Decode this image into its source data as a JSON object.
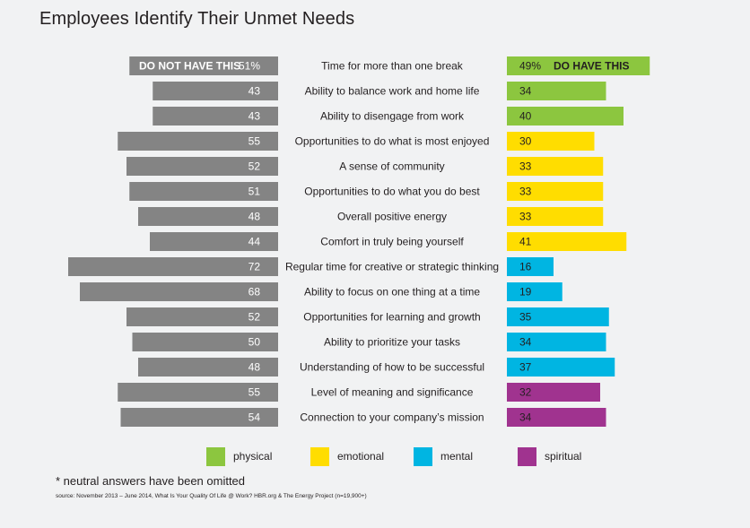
{
  "title": "Employees Identify Their Unmet Needs",
  "footnote": "* neutral answers have been omitted",
  "source": "source: November 2013 – June 2014, What Is Your Quality Of Life @ Work? HBR.org & The Energy Project (n=19,900+)",
  "left_tag": "DO NOT HAVE THIS",
  "right_tag": "DO HAVE THIS",
  "colors": {
    "gray": "#848484",
    "physical": "#8cc63f",
    "emotional": "#ffdd00",
    "mental": "#00b5e2",
    "spiritual": "#a0338f"
  },
  "chart_data": {
    "type": "bar",
    "categories": [
      "Time for more than one break",
      "Ability to balance work and home life",
      "Ability to disengage from work",
      "Opportunities to do what is most enjoyed",
      "A sense of community",
      "Opportunities to do what you do best",
      "Overall positive energy",
      "Comfort in truly being yourself",
      "Regular time for creative or strategic thinking",
      "Ability to focus on one thing at a time",
      "Opportunities for learning and growth",
      "Ability to prioritize your tasks",
      "Understanding of how to be successful",
      "Level of meaning and significance",
      "Connection to your company’s mission"
    ],
    "category_type": [
      "physical",
      "physical",
      "physical",
      "emotional",
      "emotional",
      "emotional",
      "emotional",
      "emotional",
      "mental",
      "mental",
      "mental",
      "mental",
      "mental",
      "spiritual",
      "spiritual"
    ],
    "series": [
      {
        "name": "DO NOT HAVE THIS",
        "values": [
          51,
          43,
          43,
          55,
          52,
          51,
          48,
          44,
          72,
          68,
          52,
          50,
          48,
          55,
          54
        ],
        "labels": [
          "51%",
          "43",
          "43",
          "55",
          "52",
          "51",
          "48",
          "44",
          "72",
          "68",
          "52",
          "50",
          "48",
          "55",
          "54"
        ]
      },
      {
        "name": "DO HAVE THIS",
        "values": [
          49,
          34,
          40,
          30,
          33,
          33,
          33,
          41,
          16,
          19,
          35,
          34,
          37,
          32,
          34
        ],
        "labels": [
          "49%",
          "34",
          "40",
          "30",
          "33",
          "33",
          "33",
          "41",
          "16",
          "19",
          "35",
          "34",
          "37",
          "32",
          "34"
        ]
      }
    ],
    "legend": [
      {
        "key": "physical",
        "label": "physical"
      },
      {
        "key": "emotional",
        "label": "emotional"
      },
      {
        "key": "mental",
        "label": "mental"
      },
      {
        "key": "spiritual",
        "label": "spiritual"
      }
    ],
    "legend_position": "bottom"
  }
}
